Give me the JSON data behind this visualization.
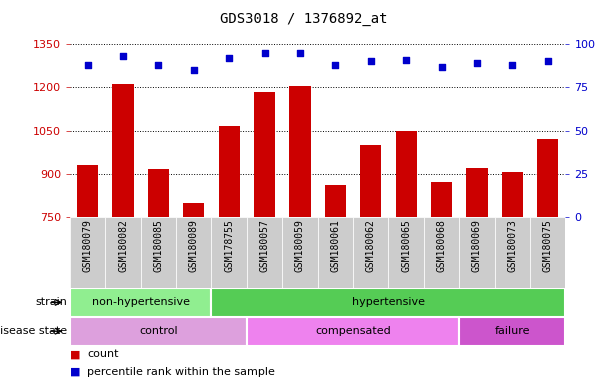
{
  "title": "GDS3018 / 1376892_at",
  "samples": [
    "GSM180079",
    "GSM180082",
    "GSM180085",
    "GSM180089",
    "GSM178755",
    "GSM180057",
    "GSM180059",
    "GSM180061",
    "GSM180062",
    "GSM180065",
    "GSM180068",
    "GSM180069",
    "GSM180073",
    "GSM180075"
  ],
  "counts": [
    930,
    1210,
    915,
    800,
    1065,
    1185,
    1205,
    860,
    1000,
    1048,
    870,
    920,
    905,
    1020
  ],
  "percentile_ranks": [
    88,
    93,
    88,
    85,
    92,
    95,
    95,
    88,
    90,
    91,
    87,
    89,
    88,
    90
  ],
  "ylim_left": [
    750,
    1350
  ],
  "ylim_right": [
    0,
    100
  ],
  "yticks_left": [
    750,
    900,
    1050,
    1200,
    1350
  ],
  "yticks_right": [
    0,
    25,
    50,
    75,
    100
  ],
  "strain_groups": [
    {
      "label": "non-hypertensive",
      "start": 0,
      "end": 4,
      "color": "#90EE90"
    },
    {
      "label": "hypertensive",
      "start": 4,
      "end": 14,
      "color": "#55CC55"
    }
  ],
  "disease_groups": [
    {
      "label": "control",
      "start": 0,
      "end": 5,
      "color": "#DDA0DD"
    },
    {
      "label": "compensated",
      "start": 5,
      "end": 11,
      "color": "#EE82EE"
    },
    {
      "label": "failure",
      "start": 11,
      "end": 14,
      "color": "#CC55CC"
    }
  ],
  "bar_color": "#CC0000",
  "dot_color": "#0000CC",
  "bar_width": 0.6,
  "legend_items": [
    {
      "color": "#CC0000",
      "label": "count"
    },
    {
      "color": "#0000CC",
      "label": "percentile rank within the sample"
    }
  ],
  "tick_color_left": "#CC0000",
  "tick_color_right": "#0000CC",
  "title_fontsize": 10,
  "strain_label": "strain",
  "disease_label": "disease state",
  "xtick_fontsize": 7,
  "ytick_fontsize": 8,
  "annot_fontsize": 8
}
